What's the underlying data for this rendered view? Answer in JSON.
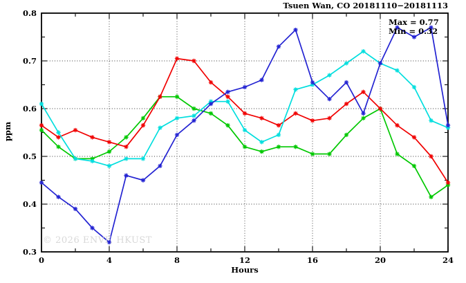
{
  "title": "Tsuen Wan, CO 20181110−20181113",
  "annotation": {
    "max_label": "Max = 0.77",
    "min_label": "Min = 0.32"
  },
  "watermark": "© 2026 ENVF, HKUST",
  "chart_data": {
    "type": "line",
    "title": "Tsuen Wan, CO 20181110−20181113",
    "xlabel": "Hours",
    "ylabel": "ppm",
    "xlim": [
      0,
      24
    ],
    "ylim": [
      0.3,
      0.8
    ],
    "x_tick_values": [
      0,
      4,
      8,
      12,
      16,
      20,
      24
    ],
    "x_tick_labels": [
      "0",
      "4",
      "8",
      "12",
      "16",
      "20",
      "24"
    ],
    "x_minor_ticks": [
      2,
      6,
      10,
      14,
      18,
      22
    ],
    "y_tick_values": [
      0.3,
      0.4,
      0.5,
      0.6,
      0.7,
      0.8
    ],
    "y_tick_labels": [
      "0.3",
      "0.4",
      "0.5",
      "0.6",
      "0.7",
      "0.8"
    ],
    "y_minor_ticks": [
      0.35,
      0.45,
      0.55,
      0.65,
      0.75
    ],
    "x_gridlines": [
      4,
      8,
      12,
      16,
      20
    ],
    "y_gridlines": [
      0.4,
      0.5,
      0.6,
      0.7
    ],
    "grid_style": "dotted",
    "legend": "none",
    "marker": "asterisk",
    "stats": {
      "max": 0.77,
      "min": 0.32
    },
    "x": [
      0,
      1,
      2,
      3,
      4,
      5,
      6,
      7,
      8,
      9,
      10,
      11,
      12,
      13,
      14,
      15,
      16,
      17,
      18,
      19,
      20,
      21,
      22,
      23,
      24
    ],
    "series": [
      {
        "name": "green-line",
        "color": "#00c800",
        "values": [
          0.555,
          0.52,
          0.495,
          0.495,
          0.51,
          0.54,
          0.58,
          0.625,
          0.625,
          0.6,
          0.59,
          0.565,
          0.52,
          0.51,
          0.52,
          0.52,
          0.505,
          0.505,
          0.545,
          0.58,
          0.6,
          0.505,
          0.48,
          0.415,
          0.44
        ]
      },
      {
        "name": "red-line",
        "color": "#f00000",
        "values": [
          0.565,
          0.54,
          0.555,
          0.54,
          0.53,
          0.52,
          0.565,
          0.625,
          0.705,
          0.7,
          0.655,
          0.625,
          0.59,
          0.58,
          0.565,
          0.59,
          0.575,
          0.58,
          0.61,
          0.635,
          0.6,
          0.565,
          0.54,
          0.5,
          0.445
        ]
      },
      {
        "name": "cyan-line",
        "color": "#00dede",
        "values": [
          0.61,
          0.55,
          0.495,
          0.49,
          0.48,
          0.495,
          0.495,
          0.56,
          0.58,
          0.585,
          0.615,
          0.615,
          0.555,
          0.53,
          0.545,
          0.64,
          0.65,
          0.67,
          0.695,
          0.72,
          0.695,
          0.68,
          0.645,
          0.575,
          0.56
        ]
      },
      {
        "name": "blue-line",
        "color": "#2323d2",
        "values": [
          0.445,
          0.415,
          0.39,
          0.35,
          0.32,
          0.46,
          0.45,
          0.48,
          0.545,
          0.575,
          0.61,
          0.635,
          0.645,
          0.66,
          0.73,
          0.765,
          0.655,
          0.62,
          0.655,
          0.59,
          0.695,
          0.77,
          0.75,
          0.77,
          0.565
        ]
      }
    ]
  }
}
